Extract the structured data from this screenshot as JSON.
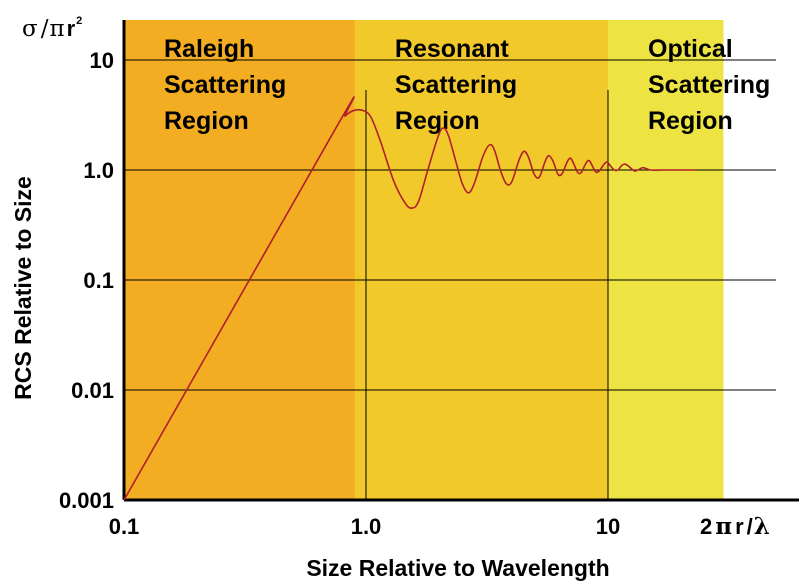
{
  "chart_data": {
    "type": "line",
    "xlabel": "Size Relative to Wavelength",
    "ylabel": "RCS Relative to Size",
    "x_unit_label": {
      "prefix": "2",
      "greek": "π",
      "var": "r",
      "slash": "/",
      "end": "λ"
    },
    "y_unit_label": {
      "greek_sigma": "σ",
      "slash": "/",
      "greek_pi": "π",
      "var": "r",
      "exp": "2"
    },
    "x_scale": "log",
    "y_scale": "log",
    "xlim": [
      0.1,
      30
    ],
    "ylim": [
      0.001,
      20
    ],
    "x_ticks": [
      {
        "value": 0.1,
        "label": "0.1"
      },
      {
        "value": 1,
        "label": "1.0"
      },
      {
        "value": 10,
        "label": "10"
      }
    ],
    "y_ticks": [
      {
        "value": 0.001,
        "label": "0.001"
      },
      {
        "value": 0.01,
        "label": "0.01"
      },
      {
        "value": 0.1,
        "label": "0.1"
      },
      {
        "value": 1,
        "label": "1.0"
      },
      {
        "value": 10,
        "label": "10"
      }
    ],
    "regions": [
      {
        "lines": [
          "Raleigh",
          "Scattering",
          "Region"
        ],
        "x_start": 0.1,
        "x_end": 0.9,
        "color": "#f2ad22"
      },
      {
        "lines": [
          "Resonant",
          "Scattering",
          "Region"
        ],
        "x_start": 0.9,
        "x_end": 10,
        "color": "#f2c92a"
      },
      {
        "lines": [
          "Optical",
          "Scattering",
          "Region"
        ],
        "x_start": 10,
        "x_end": 30,
        "color": "#ede443"
      }
    ],
    "line_color": "#b0202a",
    "series": [
      {
        "points": [
          [
            0.1,
            0.001
          ],
          [
            0.75,
            2.4
          ],
          [
            0.82,
            3.1
          ],
          [
            0.9,
            3.5
          ],
          [
            0.98,
            3.45
          ],
          [
            1.05,
            3.0
          ],
          [
            1.15,
            1.8
          ],
          [
            1.3,
            0.8
          ],
          [
            1.45,
            0.5
          ],
          [
            1.55,
            0.45
          ],
          [
            1.65,
            0.52
          ],
          [
            1.8,
            1.0
          ],
          [
            2.0,
            2.1
          ],
          [
            2.1,
            2.4
          ],
          [
            2.2,
            2.0
          ],
          [
            2.35,
            1.2
          ],
          [
            2.5,
            0.75
          ],
          [
            2.65,
            0.62
          ],
          [
            2.8,
            0.75
          ],
          [
            3.05,
            1.35
          ],
          [
            3.25,
            1.7
          ],
          [
            3.4,
            1.5
          ],
          [
            3.6,
            0.98
          ],
          [
            3.8,
            0.75
          ],
          [
            4.0,
            0.78
          ],
          [
            4.3,
            1.25
          ],
          [
            4.5,
            1.48
          ],
          [
            4.7,
            1.3
          ],
          [
            4.95,
            0.92
          ],
          [
            5.2,
            0.86
          ],
          [
            5.5,
            1.2
          ],
          [
            5.7,
            1.35
          ],
          [
            5.95,
            1.18
          ],
          [
            6.2,
            0.92
          ],
          [
            6.45,
            0.92
          ],
          [
            6.8,
            1.2
          ],
          [
            7.0,
            1.28
          ],
          [
            7.2,
            1.15
          ],
          [
            7.5,
            0.95
          ],
          [
            7.75,
            0.95
          ],
          [
            8.1,
            1.15
          ],
          [
            8.35,
            1.22
          ],
          [
            8.6,
            1.1
          ],
          [
            8.9,
            0.96
          ],
          [
            9.2,
            0.98
          ],
          [
            9.6,
            1.12
          ],
          [
            9.9,
            1.18
          ],
          [
            10.2,
            1.1
          ],
          [
            10.6,
            1.0
          ],
          [
            11.0,
            1.0
          ],
          [
            11.4,
            1.1
          ],
          [
            11.8,
            1.13
          ],
          [
            12.3,
            1.06
          ],
          [
            12.9,
            0.98
          ],
          [
            13.5,
            1.02
          ],
          [
            14.0,
            1.05
          ],
          [
            15.0,
            1.0
          ],
          [
            17.0,
            1.0
          ],
          [
            20.0,
            1.0
          ],
          [
            23.0,
            1.0
          ]
        ]
      }
    ]
  }
}
